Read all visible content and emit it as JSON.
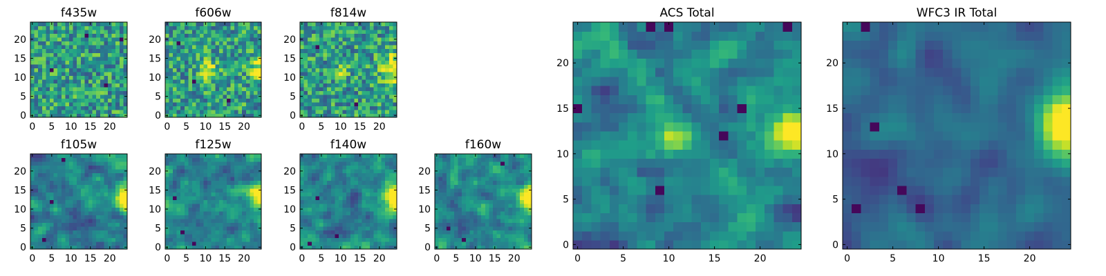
{
  "chart_data": [
    {
      "type": "heatmap",
      "title": "f435w",
      "x_ticks": [
        "0",
        "5",
        "10",
        "15",
        "20"
      ],
      "y_ticks": [
        "0",
        "5",
        "10",
        "15",
        "20"
      ],
      "xlim": [
        0,
        25
      ],
      "ylim": [
        0,
        25
      ],
      "grid_size": [
        25,
        25
      ],
      "colormap": "viridis",
      "noise_level": "high",
      "bright_regions": [],
      "dark_spots": [
        {
          "x": 23,
          "y": 20
        },
        {
          "x": 5,
          "y": 12
        },
        {
          "x": 19,
          "y": 8
        },
        {
          "x": 14,
          "y": 21
        }
      ]
    },
    {
      "type": "heatmap",
      "title": "f606w",
      "x_ticks": [
        "0",
        "5",
        "10",
        "15",
        "20"
      ],
      "y_ticks": [
        "0",
        "5",
        "10",
        "15",
        "20"
      ],
      "xlim": [
        0,
        25
      ],
      "ylim": [
        0,
        25
      ],
      "grid_size": [
        25,
        25
      ],
      "colormap": "viridis",
      "noise_level": "high",
      "bright_regions": [
        {
          "x": 10.5,
          "y": 12.0,
          "sigma": 1.5,
          "amp": 0.35
        },
        {
          "x": 24,
          "y": 12.5,
          "sigma": 2.0,
          "amp": 0.3
        }
      ],
      "dark_spots": [
        {
          "x": 3,
          "y": 19
        },
        {
          "x": 16,
          "y": 4
        },
        {
          "x": 7,
          "y": 9
        }
      ]
    },
    {
      "type": "heatmap",
      "title": "f814w",
      "x_ticks": [
        "0",
        "5",
        "10",
        "15",
        "20"
      ],
      "y_ticks": [
        "0",
        "5",
        "10",
        "15",
        "20"
      ],
      "xlim": [
        0,
        25
      ],
      "ylim": [
        0,
        25
      ],
      "grid_size": [
        25,
        25
      ],
      "colormap": "viridis",
      "noise_level": "high",
      "bright_regions": [
        {
          "x": 24,
          "y": 12.5,
          "sigma": 2.3,
          "amp": 0.4
        },
        {
          "x": 10,
          "y": 12,
          "sigma": 1.5,
          "amp": 0.15
        }
      ],
      "dark_spots": [
        {
          "x": 4,
          "y": 18
        },
        {
          "x": 14,
          "y": 3
        }
      ]
    },
    {
      "type": "heatmap",
      "title": "f105w",
      "x_ticks": [
        "0",
        "5",
        "10",
        "15",
        "20"
      ],
      "y_ticks": [
        "0",
        "5",
        "10",
        "15",
        "20"
      ],
      "xlim": [
        0,
        25
      ],
      "ylim": [
        0,
        25
      ],
      "grid_size": [
        25,
        25
      ],
      "colormap": "viridis",
      "noise_level": "medium",
      "bright_regions": [
        {
          "x": 24.5,
          "y": 13,
          "sigma": 2.2,
          "amp": 0.5
        }
      ],
      "dark_spots": [
        {
          "x": 8,
          "y": 23
        },
        {
          "x": 5,
          "y": 12
        },
        {
          "x": 3,
          "y": 2
        }
      ]
    },
    {
      "type": "heatmap",
      "title": "f125w",
      "x_ticks": [
        "0",
        "5",
        "10",
        "15",
        "20"
      ],
      "y_ticks": [
        "0",
        "5",
        "10",
        "15",
        "20"
      ],
      "xlim": [
        0,
        25
      ],
      "ylim": [
        0,
        25
      ],
      "grid_size": [
        25,
        25
      ],
      "colormap": "viridis",
      "noise_level": "medium",
      "bright_regions": [
        {
          "x": 24.5,
          "y": 13,
          "sigma": 2.6,
          "amp": 0.5
        }
      ],
      "dark_spots": [
        {
          "x": 4,
          "y": 4
        },
        {
          "x": 7,
          "y": 1
        },
        {
          "x": 2,
          "y": 13
        }
      ]
    },
    {
      "type": "heatmap",
      "title": "f140w",
      "x_ticks": [
        "0",
        "5",
        "10",
        "15",
        "20"
      ],
      "y_ticks": [
        "0",
        "5",
        "10",
        "15",
        "20"
      ],
      "xlim": [
        0,
        25
      ],
      "ylim": [
        0,
        25
      ],
      "grid_size": [
        25,
        25
      ],
      "colormap": "viridis",
      "noise_level": "medium",
      "bright_regions": [
        {
          "x": 24.5,
          "y": 13,
          "sigma": 2.5,
          "amp": 0.55
        }
      ],
      "dark_spots": [
        {
          "x": 2,
          "y": 1
        },
        {
          "x": 9,
          "y": 3
        },
        {
          "x": 4,
          "y": 13
        }
      ]
    },
    {
      "type": "heatmap",
      "title": "f160w",
      "x_ticks": [
        "0",
        "5",
        "10",
        "15",
        "20"
      ],
      "y_ticks": [
        "0",
        "5",
        "10",
        "15",
        "20"
      ],
      "xlim": [
        0,
        25
      ],
      "ylim": [
        0,
        25
      ],
      "grid_size": [
        25,
        25
      ],
      "colormap": "viridis",
      "noise_level": "medium",
      "bright_regions": [
        {
          "x": 24.5,
          "y": 13,
          "sigma": 2.3,
          "amp": 0.6
        }
      ],
      "dark_spots": [
        {
          "x": 7,
          "y": 2
        },
        {
          "x": 17,
          "y": 22
        },
        {
          "x": 3,
          "y": 5
        }
      ]
    },
    {
      "type": "heatmap",
      "title": "ACS Total",
      "x_ticks": [
        "0",
        "5",
        "10",
        "15",
        "20"
      ],
      "y_ticks": [
        "0",
        "5",
        "10",
        "15",
        "20"
      ],
      "xlim": [
        0,
        25
      ],
      "ylim": [
        0,
        25
      ],
      "grid_size": [
        25,
        25
      ],
      "colormap": "viridis",
      "noise_level": "medium",
      "bright_regions": [
        {
          "x": 10.5,
          "y": 12,
          "sigma": 1.4,
          "amp": 0.35
        },
        {
          "x": 24,
          "y": 12.5,
          "sigma": 2.0,
          "amp": 0.4
        }
      ],
      "dark_spots": [
        {
          "x": 0,
          "y": 15
        },
        {
          "x": 18,
          "y": 15
        },
        {
          "x": 16,
          "y": 12
        },
        {
          "x": 9,
          "y": 6
        },
        {
          "x": 8,
          "y": 24
        },
        {
          "x": 10,
          "y": 24
        },
        {
          "x": 23,
          "y": 24
        }
      ]
    },
    {
      "type": "heatmap",
      "title": "WFC3 IR Total",
      "x_ticks": [
        "0",
        "5",
        "10",
        "15",
        "20"
      ],
      "y_ticks": [
        "0",
        "5",
        "10",
        "15",
        "20"
      ],
      "xlim": [
        0,
        25
      ],
      "ylim": [
        0,
        25
      ],
      "grid_size": [
        25,
        25
      ],
      "colormap": "viridis",
      "noise_level": "low",
      "bright_regions": [
        {
          "x": 24.5,
          "y": 13.5,
          "sigma": 2.4,
          "amp": 0.6
        }
      ],
      "dark_spots": [
        {
          "x": 3,
          "y": 12.5
        },
        {
          "x": 2,
          "y": 24
        },
        {
          "x": 8,
          "y": 4
        },
        {
          "x": 6,
          "y": 6
        },
        {
          "x": 1,
          "y": 4
        }
      ]
    }
  ]
}
